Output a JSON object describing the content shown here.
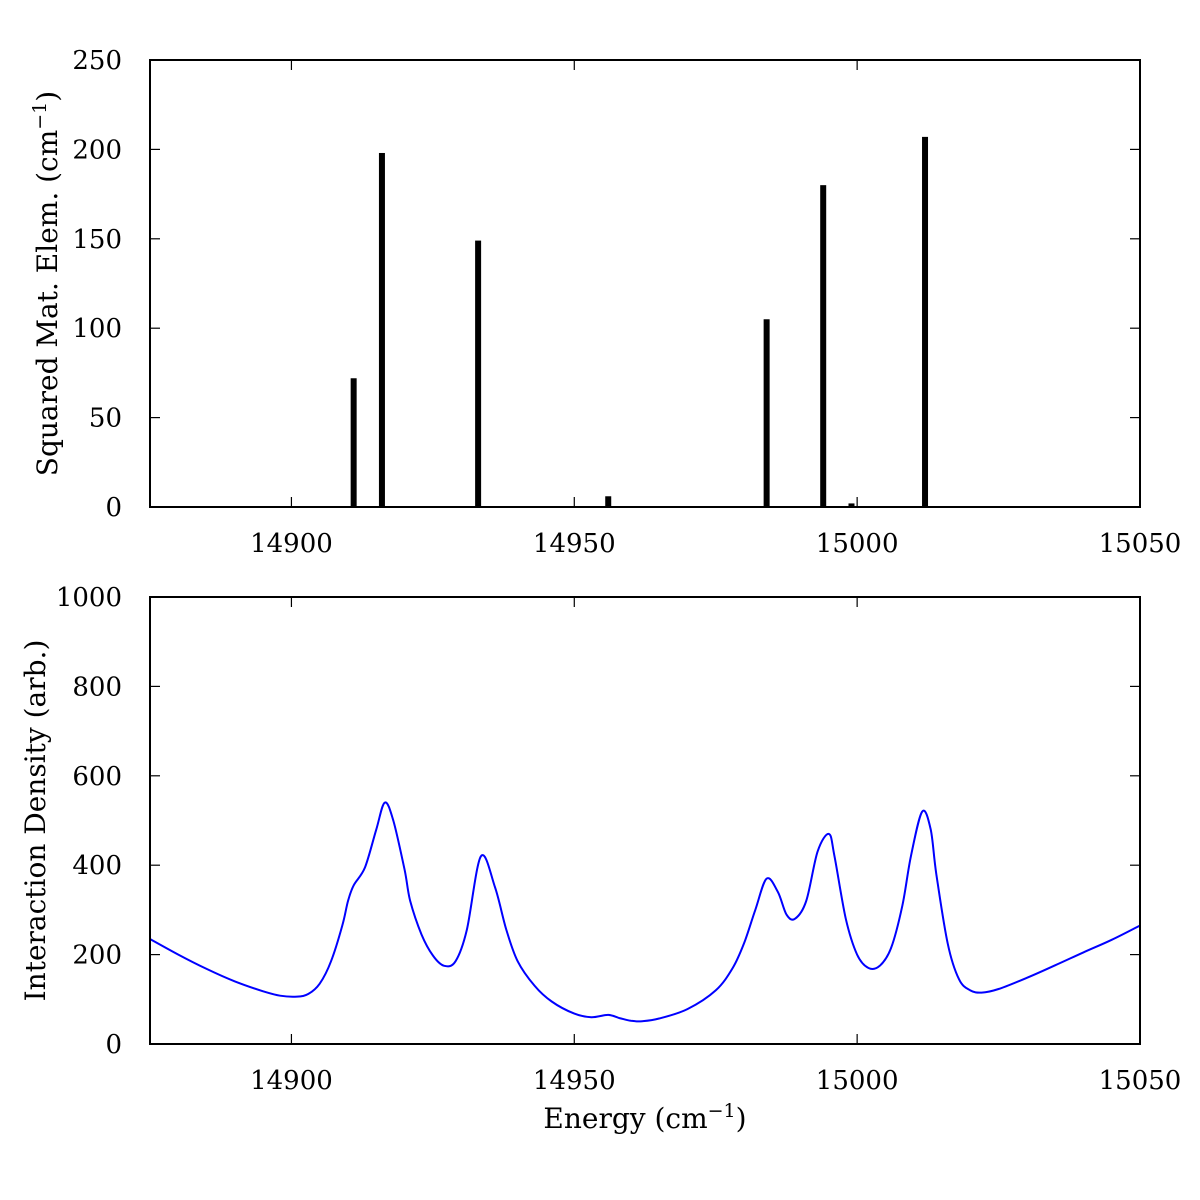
{
  "chart_data": [
    {
      "type": "bar",
      "ylabel_main": "Squared Mat. Elem. (cm",
      "ylabel_sup": "−1",
      "ylabel_close": ")",
      "xlim": [
        14875,
        15050
      ],
      "ylim": [
        0,
        250
      ],
      "x_ticks": [
        14900,
        14950,
        15000,
        15050
      ],
      "x_tick_labels": [
        "14900",
        "14950",
        "15000",
        "15050"
      ],
      "y_ticks": [
        0,
        50,
        100,
        150,
        200,
        250
      ],
      "y_tick_labels": [
        "0",
        "50",
        "100",
        "150",
        "200",
        "250"
      ],
      "x": [
        14911,
        14916,
        14933,
        14956,
        14984,
        14994,
        14999,
        15012
      ],
      "values": [
        72,
        198,
        149,
        6,
        105,
        180,
        2,
        207
      ],
      "bar_color": "#000000",
      "grid": false
    },
    {
      "type": "line",
      "xlabel_main": "Energy (cm",
      "xlabel_sup": "−1",
      "xlabel_close": ")",
      "ylabel": "Interaction Density (arb.)",
      "xlim": [
        14875,
        15050
      ],
      "ylim": [
        0,
        1000
      ],
      "x_ticks": [
        14900,
        14950,
        15000,
        15050
      ],
      "x_tick_labels": [
        "14900",
        "14950",
        "15000",
        "15050"
      ],
      "y_ticks": [
        0,
        200,
        400,
        600,
        800,
        1000
      ],
      "y_tick_labels": [
        "0",
        "200",
        "400",
        "600",
        "800",
        "1000"
      ],
      "grid": false,
      "series": [
        {
          "color": "#0000ff",
          "x": [
            14875,
            14880,
            14885,
            14890,
            14895,
            14898,
            14901,
            14903,
            14905,
            14907,
            14909,
            14910,
            14911,
            14913,
            14915,
            14916.5,
            14918,
            14920,
            14921,
            14923,
            14925,
            14927,
            14929,
            14931,
            14933.5,
            14936,
            14938,
            14940,
            14943,
            14946,
            14950,
            14953,
            14956,
            14958,
            14960,
            14962,
            14965,
            14970,
            14975,
            14978,
            14980,
            14982,
            14984,
            14986,
            14987.5,
            14989,
            14991,
            14993,
            14995,
            14996,
            14998,
            15000,
            15002,
            15004,
            15006,
            15008,
            15009.5,
            15011.5,
            15013,
            15014,
            15016,
            15018,
            15020,
            15022,
            15025,
            15030,
            15035,
            15040,
            15045,
            15050
          ],
          "y": [
            235,
            200,
            168,
            140,
            118,
            108,
            106,
            112,
            135,
            185,
            265,
            320,
            355,
            395,
            480,
            540,
            500,
            390,
            320,
            245,
            198,
            175,
            185,
            255,
            420,
            350,
            255,
            185,
            130,
            95,
            68,
            60,
            65,
            58,
            52,
            51,
            57,
            78,
            120,
            170,
            225,
            300,
            370,
            340,
            290,
            280,
            320,
            430,
            470,
            420,
            280,
            200,
            170,
            175,
            215,
            310,
            420,
            520,
            480,
            380,
            225,
            145,
            120,
            115,
            123,
            148,
            176,
            205,
            233,
            265
          ]
        }
      ]
    }
  ]
}
